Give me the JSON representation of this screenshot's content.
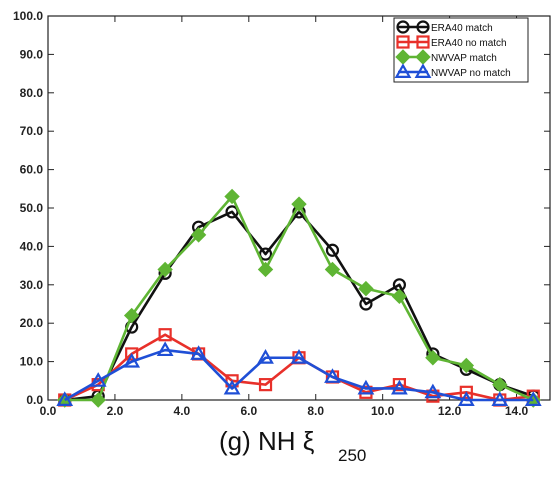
{
  "chart_data": {
    "type": "line",
    "title": "",
    "caption": {
      "main": "(g) NH  ξ",
      "subscript": "250"
    },
    "xlabel": "",
    "ylabel": "",
    "xlim": [
      0.0,
      15.0
    ],
    "ylim": [
      0.0,
      100.0
    ],
    "xticks": [
      "0.0",
      "2.0",
      "4.0",
      "6.0",
      "8.0",
      "10.0",
      "12.0",
      "14.0"
    ],
    "yticks": [
      "0.0",
      "10.0",
      "20.0",
      "30.0",
      "40.0",
      "50.0",
      "60.0",
      "70.0",
      "80.0",
      "90.0",
      "100.0"
    ],
    "grid": false,
    "legend_position": "top-right",
    "x": [
      0.5,
      1.5,
      2.5,
      3.5,
      4.5,
      5.5,
      6.5,
      7.5,
      8.5,
      9.5,
      10.5,
      11.5,
      12.5,
      13.5,
      14.5
    ],
    "series": [
      {
        "name": "ERA40 match",
        "color": "#111111",
        "marker": "circle",
        "values": [
          0.0,
          1.0,
          19.0,
          33.0,
          45.0,
          49.0,
          38.0,
          49.0,
          39.0,
          25.0,
          30.0,
          12.0,
          8.0,
          4.0,
          1.0
        ]
      },
      {
        "name": "ERA40 no match",
        "color": "#e8302a",
        "marker": "square",
        "values": [
          0.0,
          4.0,
          12.0,
          17.0,
          12.0,
          5.0,
          4.0,
          11.0,
          6.0,
          2.0,
          4.0,
          1.0,
          2.0,
          0.0,
          1.0
        ]
      },
      {
        "name": "NWVAP match",
        "color": "#5fb534",
        "marker": "diamond",
        "values": [
          0.0,
          0.0,
          22.0,
          34.0,
          43.0,
          53.0,
          34.0,
          51.0,
          34.0,
          29.0,
          27.0,
          11.0,
          9.0,
          4.0,
          0.0
        ]
      },
      {
        "name": "NWVAP no match",
        "color": "#1f4fd6",
        "marker": "triangle",
        "values": [
          0.0,
          5.0,
          10.0,
          13.0,
          12.0,
          3.0,
          11.0,
          11.0,
          6.0,
          3.0,
          3.0,
          2.0,
          0.0,
          0.0,
          0.0
        ]
      }
    ]
  }
}
